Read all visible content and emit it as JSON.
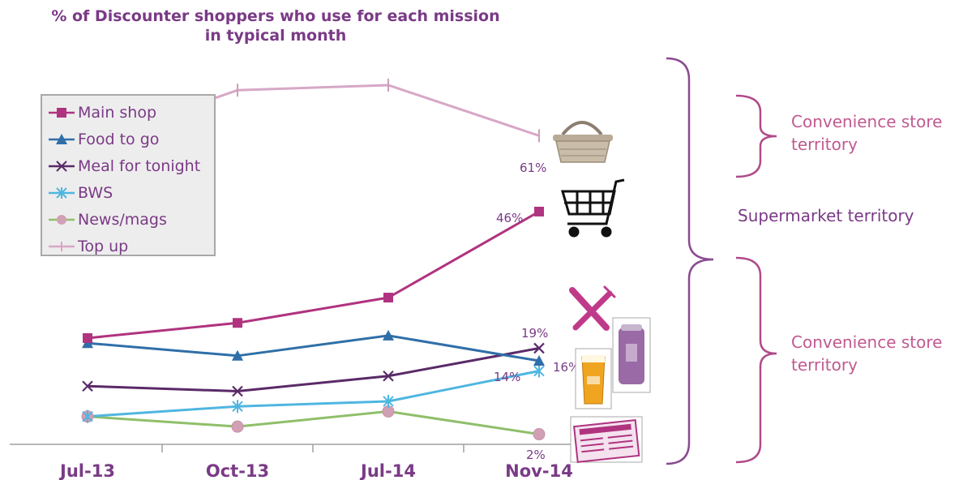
{
  "chart_data": {
    "type": "line",
    "title": "% of Discounter shoppers who use for each mission in typical month",
    "title_line1": "% of Discounter shoppers who use for each mission",
    "title_line2": "in typical month",
    "categories": [
      "Jul-13",
      "Oct-13",
      "Jul-14",
      "Nov-14"
    ],
    "ylim": [
      0,
      75
    ],
    "grid": false,
    "legend_position": "top-left",
    "series": [
      {
        "name": "Main shop",
        "values": [
          21,
          24,
          29,
          46
        ],
        "color": "#b0337f",
        "marker": "square",
        "end_label": "46%"
      },
      {
        "name": "Food to go",
        "values": [
          20,
          17.5,
          21.5,
          16.5
        ],
        "color": "#2f6fa8",
        "marker": "triangle",
        "end_label": "16%"
      },
      {
        "name": "Meal for tonight",
        "values": [
          11.5,
          10.5,
          13.5,
          19
        ],
        "color": "#5a2a68",
        "marker": "x",
        "end_label": "19%"
      },
      {
        "name": "BWS",
        "values": [
          5.5,
          7.5,
          8.5,
          14.5
        ],
        "color": "#4fb6e0",
        "marker": "star",
        "end_label": "14%"
      },
      {
        "name": "News/mags",
        "values": [
          5.5,
          3.5,
          6.5,
          2
        ],
        "color": "#8fbf6a",
        "marker": "circle",
        "end_label": "2%"
      },
      {
        "name": "Top up",
        "values": [
          null,
          70,
          71,
          61
        ],
        "color": "#d7a7c6",
        "marker": "plus",
        "end_label": "61%"
      }
    ]
  },
  "annotations": {
    "convenience_top_line1": "Convenience store",
    "convenience_top_line2": "territory",
    "supermarket": "Supermarket territory",
    "convenience_bottom_line1": "Convenience store",
    "convenience_bottom_line2": "territory"
  },
  "icons": [
    "shopping-basket-icon",
    "shopping-cart-icon",
    "knife-fork-icon",
    "beer-glass-icon",
    "drink-can-icon",
    "newspaper-icon"
  ]
}
